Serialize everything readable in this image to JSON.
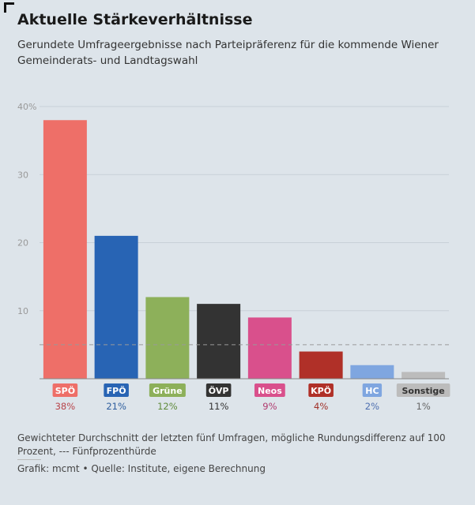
{
  "title": "Aktuelle Stärkeverhältnisse",
  "subtitle": "Gerundete Umfrageergebnisse nach Parteipräferenz für die kommende Wiener Gemeinderats- und Landtagswahl",
  "note": "Gewichteter Durchschnitt der letzten fünf Umfragen, mögliche Rundungsdifferenz auf 100 Prozent, --- Fünfprozenthürde",
  "credit": "Grafik: mcmt • Quelle: Institute, eigene Berechnung",
  "chart_data": {
    "type": "bar",
    "categories": [
      "SPÖ",
      "FPÖ",
      "Grüne",
      "ÖVP",
      "Neos",
      "KPÖ",
      "HC",
      "Sonstige"
    ],
    "values": [
      38,
      21,
      12,
      11,
      9,
      4,
      2,
      1
    ],
    "value_labels": [
      "38%",
      "21%",
      "12%",
      "11%",
      "9%",
      "4%",
      "2%",
      "1%"
    ],
    "colors": [
      "#ee6f68",
      "#2864b4",
      "#8db05a",
      "#333333",
      "#d9508c",
      "#b03028",
      "#7fa6e0",
      "#bcbcbc"
    ],
    "label_colors": [
      "#b8444a",
      "#2e5e9e",
      "#5f8a3a",
      "#333333",
      "#b03a6e",
      "#a03028",
      "#4e6fb0",
      "#666666"
    ],
    "yticks": [
      10,
      20,
      30,
      40
    ],
    "ytick_labels": [
      "10",
      "20",
      "30",
      "40%"
    ],
    "ylim": [
      0,
      40
    ],
    "reference_line": {
      "value": 5,
      "style": "dashed"
    },
    "grid": true
  }
}
